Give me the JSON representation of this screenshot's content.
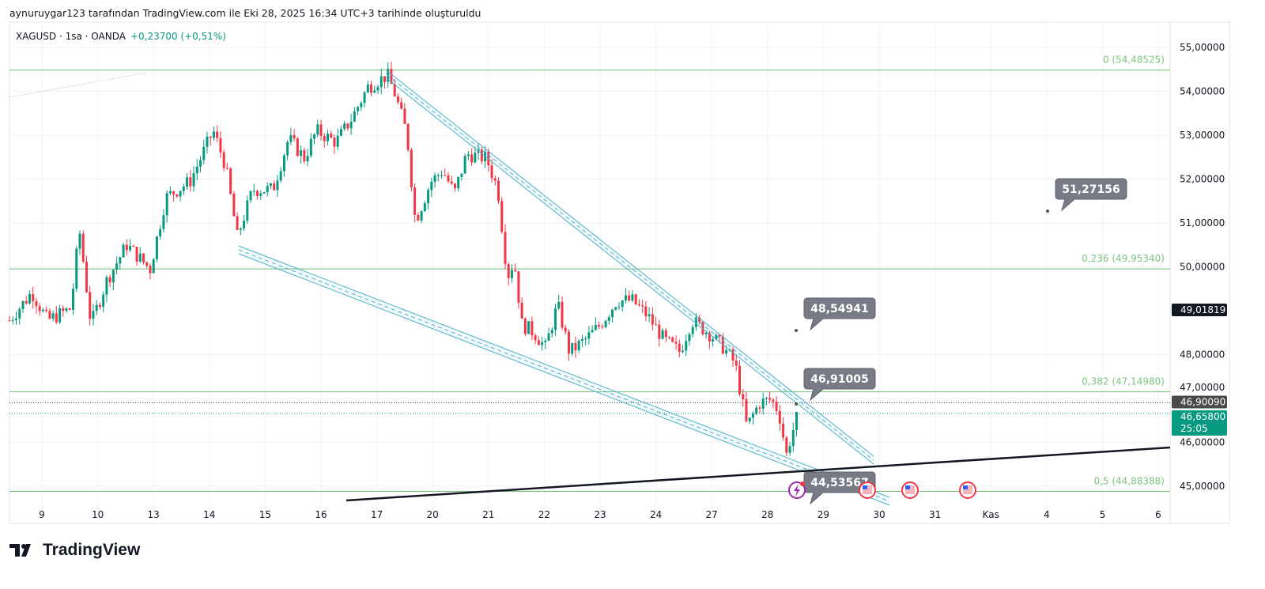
{
  "caption": "aynuruygar123 tarafından TradingView.com ile Eki 28, 2025 16:34 UTC+3 tarihinde oluşturuldu",
  "symbol": {
    "name": "XAGUSD · 1sa · OANDA",
    "change": "+0,23700 (+0,51%)"
  },
  "logo": "TradingView",
  "colors": {
    "up": "#089981",
    "down": "#f23645",
    "fib": "#4caf50",
    "channel": "#4fb3c9",
    "trend": "#131722",
    "callout": "#787b86"
  },
  "chart_data": {
    "type": "candlestick",
    "title": "XAGUSD · 1sa · OANDA",
    "ylim": [
      44.6,
      55.5
    ],
    "y_ticks": [
      "55,00000",
      "54,00000",
      "53,00000",
      "52,00000",
      "51,00000",
      "50,00000",
      "48,00000",
      "47,00000",
      "46,00000",
      "45,00000"
    ],
    "y_tick_values": [
      55,
      54,
      53,
      52,
      51,
      50,
      48,
      47,
      46,
      45
    ],
    "x_ticks": [
      "9",
      "10",
      "13",
      "14",
      "15",
      "16",
      "17",
      "20",
      "21",
      "22",
      "23",
      "24",
      "27",
      "28",
      "29",
      "30",
      "31",
      "Kas",
      "4",
      "5",
      "6"
    ],
    "path_day_index": [
      -0.58,
      -0.18,
      0.1,
      0.52,
      0.67,
      0.88,
      1.16,
      1.52,
      1.94,
      2.22,
      2.65,
      3.07,
      3.29,
      3.5,
      3.78,
      4.14,
      4.42,
      4.7,
      4.92,
      5.27,
      5.55,
      5.84,
      6.19,
      6.33,
      6.54,
      6.69,
      6.97,
      7.18,
      7.39,
      7.61,
      7.96,
      8.17,
      8.34,
      8.46,
      8.6,
      8.81,
      9.02,
      9.24,
      9.45,
      9.73,
      10.01,
      10.3,
      10.58,
      10.86,
      11.15,
      11.43,
      11.64,
      11.93,
      12.21,
      12.42,
      12.63,
      12.85,
      13.06,
      13.2,
      13.34,
      13.41,
      13.56
    ],
    "path_close": [
      48.78,
      49.42,
      48.78,
      49.05,
      50.86,
      48.69,
      49.68,
      50.5,
      49.95,
      51.58,
      51.94,
      53.1,
      52.3,
      50.68,
      51.76,
      51.76,
      52.93,
      52.48,
      53.1,
      52.84,
      53.38,
      54.1,
      54.37,
      53.92,
      53.02,
      51.04,
      51.94,
      52.2,
      51.67,
      52.57,
      52.48,
      51.76,
      49.77,
      50.14,
      48.69,
      48.51,
      48.16,
      49.14,
      48.06,
      48.33,
      48.69,
      49.23,
      49.23,
      48.87,
      48.33,
      48.06,
      48.78,
      48.51,
      48.16,
      47.79,
      46.35,
      46.89,
      46.98,
      46.71,
      45.72,
      46.08,
      46.71
    ],
    "fib_levels": [
      {
        "label": "0 (54,48525)",
        "value": 54.48525
      },
      {
        "label": "0,236 (49,95340)",
        "value": 49.9534
      },
      {
        "label": "0,382 (47,14980)",
        "value": 47.1498
      },
      {
        "label": "0,5 (44,88388)",
        "value": 44.88388
      }
    ],
    "price_labels": [
      {
        "text": "49,01819",
        "value": 49.01819,
        "style": "dark"
      },
      {
        "text": "46,90090",
        "value": 46.9009,
        "style": "grey"
      },
      {
        "text": "46,65800",
        "value": 46.658,
        "style": "green",
        "sub": "25:05"
      }
    ],
    "callouts": [
      "51,27156",
      "48,54941",
      "46,91005",
      "44,53567"
    ]
  }
}
